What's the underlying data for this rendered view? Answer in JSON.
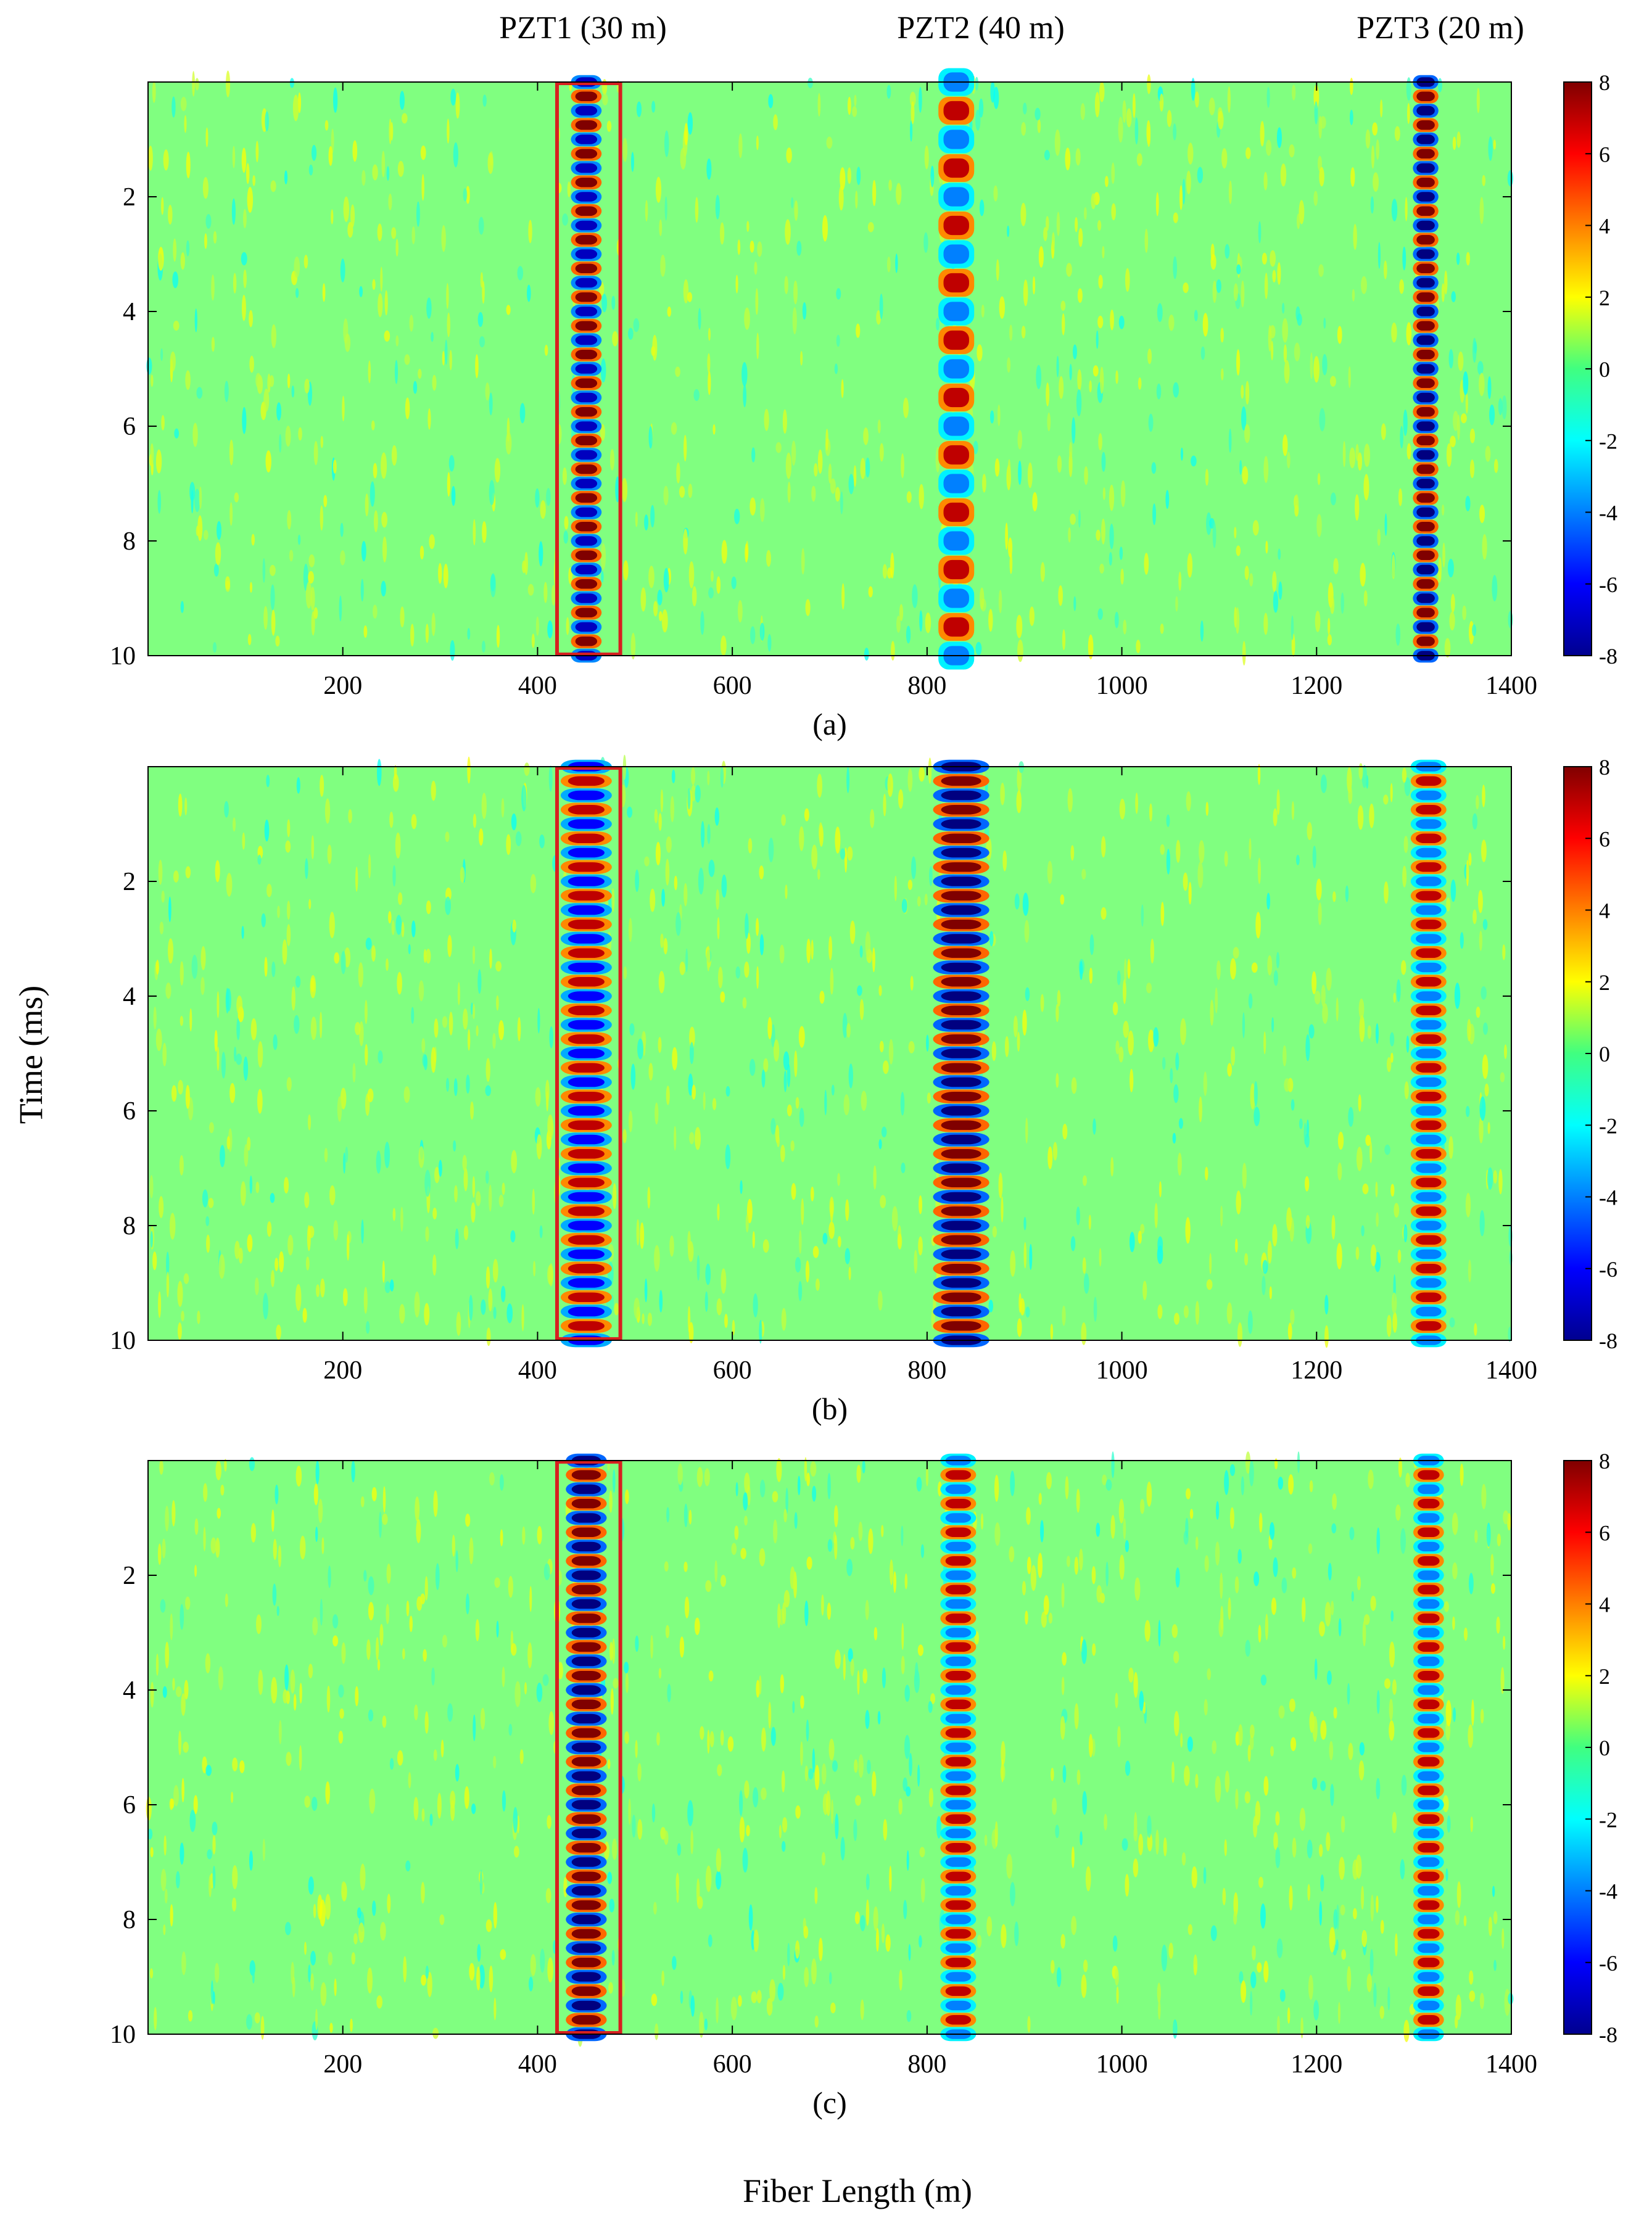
{
  "figure": {
    "top_labels": [
      "PZT1 (30 m)",
      "PZT2 (40 m)",
      "PZT3 (20 m)"
    ],
    "ylabel": "Time (ms)",
    "xlabel": "Fiber Length (m)"
  },
  "chart_data": [
    {
      "type": "heatmap",
      "panel_label": "(a)",
      "title": "",
      "xlabel": "Fiber Length (m)",
      "ylabel": "Time (ms)",
      "xlim": [
        0,
        1400
      ],
      "ylim": [
        0,
        10
      ],
      "y_reversed": true,
      "xticks": [
        200,
        400,
        600,
        800,
        1000,
        1200,
        1400
      ],
      "yticks": [
        2,
        4,
        6,
        8,
        10
      ],
      "colorbar": {
        "range": [
          -8,
          8
        ],
        "ticks": [
          8,
          6,
          4,
          2,
          0,
          -2,
          -4,
          -6,
          -8
        ],
        "colormap": "jet"
      },
      "background_value": 0,
      "highlight_box": {
        "x_range": [
          420,
          485
        ],
        "y_range": [
          0,
          10
        ],
        "color": "#d62020"
      },
      "sources": [
        {
          "name": "PZT1",
          "center_m": 450,
          "width_m": 30,
          "period_ms": 0.5,
          "peak": 8,
          "trough": -7
        },
        {
          "name": "PZT2",
          "center_m": 830,
          "width_m": 35,
          "period_ms": 1.0,
          "peak": 7,
          "trough": -4
        },
        {
          "name": "PZT3",
          "center_m": 1312,
          "width_m": 25,
          "period_ms": 0.5,
          "peak": 8,
          "trough": -8
        }
      ]
    },
    {
      "type": "heatmap",
      "panel_label": "(b)",
      "title": "",
      "xlabel": "Fiber Length (m)",
      "ylabel": "Time (ms)",
      "xlim": [
        0,
        1400
      ],
      "ylim": [
        0,
        10
      ],
      "y_reversed": true,
      "xticks": [
        200,
        400,
        600,
        800,
        1000,
        1200,
        1400
      ],
      "yticks": [
        2,
        4,
        6,
        8,
        10
      ],
      "colorbar": {
        "range": [
          -8,
          8
        ],
        "ticks": [
          8,
          6,
          4,
          2,
          0,
          -2,
          -4,
          -6,
          -8
        ],
        "colormap": "jet"
      },
      "background_value": 0,
      "highlight_box": {
        "x_range": [
          420,
          485
        ],
        "y_range": [
          0,
          10
        ],
        "color": "#d62020"
      },
      "sources": [
        {
          "name": "PZT1",
          "center_m": 450,
          "width_m": 50,
          "period_ms": 0.5,
          "peak": 7,
          "trough": -6
        },
        {
          "name": "PZT2",
          "center_m": 835,
          "width_m": 55,
          "period_ms": 0.5,
          "peak": 8,
          "trough": -8
        },
        {
          "name": "PZT3",
          "center_m": 1315,
          "width_m": 35,
          "period_ms": 0.5,
          "peak": 7,
          "trough": -4
        }
      ]
    },
    {
      "type": "heatmap",
      "panel_label": "(c)",
      "title": "",
      "xlabel": "Fiber Length (m)",
      "ylabel": "Time (ms)",
      "xlim": [
        0,
        1400
      ],
      "ylim": [
        0,
        10
      ],
      "y_reversed": true,
      "xticks": [
        200,
        400,
        600,
        800,
        1000,
        1200,
        1400
      ],
      "yticks": [
        2,
        4,
        6,
        8,
        10
      ],
      "colorbar": {
        "range": [
          -8,
          8
        ],
        "ticks": [
          8,
          6,
          4,
          2,
          0,
          -2,
          -4,
          -6,
          -8
        ],
        "colormap": "jet"
      },
      "background_value": 0,
      "highlight_box": {
        "x_range": [
          420,
          485
        ],
        "y_range": [
          0,
          10
        ],
        "color": "#d62020"
      },
      "sources": [
        {
          "name": "PZT1",
          "center_m": 450,
          "width_m": 40,
          "period_ms": 0.5,
          "peak": 8,
          "trough": -8
        },
        {
          "name": "PZT2",
          "center_m": 832,
          "width_m": 35,
          "period_ms": 0.5,
          "peak": 7,
          "trough": -4
        },
        {
          "name": "PZT3",
          "center_m": 1315,
          "width_m": 30,
          "period_ms": 0.5,
          "peak": 7,
          "trough": -4
        }
      ]
    }
  ]
}
